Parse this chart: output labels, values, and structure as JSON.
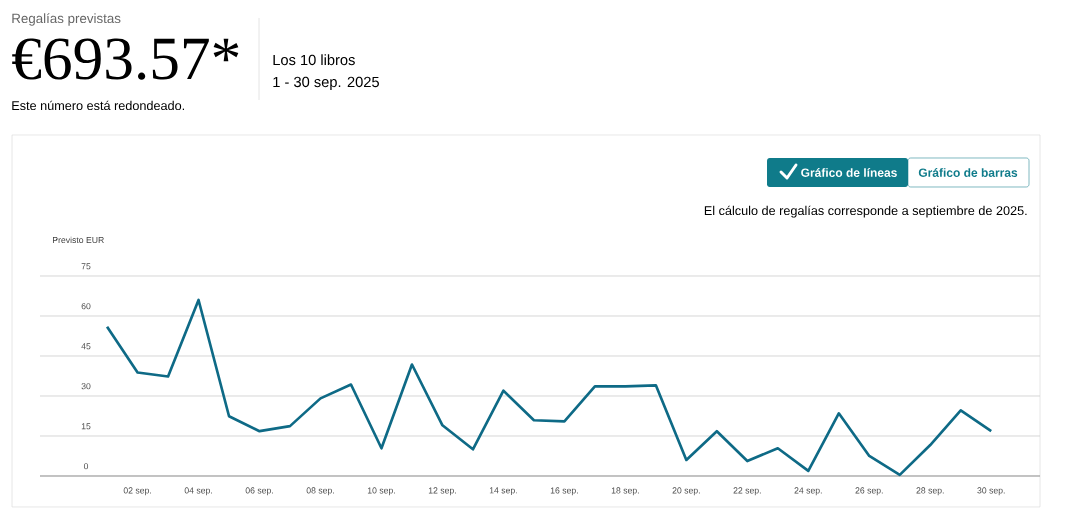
{
  "chart_data": {
    "type": "line",
    "title": "Regalías previstas",
    "ylabel": "Previsto EUR",
    "annotations": [
      "€693.57*",
      "Los 10 libros",
      "1 - 30 sep. 2025",
      "Este número está redondeado.",
      "Gráfico de líneas",
      "Gráfico de barras",
      "El cálculo de regalías corresponde a septiembre de 2025."
    ],
    "categories": [
      null,
      "02 sep.",
      null,
      "04 sep.",
      null,
      "06 sep.",
      null,
      "08 sep.",
      null,
      "10 sep.",
      null,
      "12 sep.",
      null,
      "14 sep.",
      null,
      "16 sep.",
      null,
      "18 sep.",
      null,
      "20 sep.",
      null,
      "22 sep.",
      null,
      "24 sep.",
      null,
      "26 sep.",
      null,
      "28 sep.",
      null,
      "30 sep."
    ],
    "series": [
      {
        "color": "#0e6a86",
        "values": [
          56,
          38.8,
          37.3,
          66,
          22.4,
          16.8,
          18.7,
          29.1,
          34.3,
          10.4,
          41.8,
          19,
          10,
          32,
          20.9,
          20.5,
          33.6,
          33.6,
          34,
          6,
          16.8,
          5.6,
          10.4,
          1.9,
          23.5,
          7.5,
          0.4,
          11.6,
          24.6,
          16.8
        ]
      }
    ],
    "ylim": [
      0,
      75
    ],
    "yticks": [
      0,
      15,
      30,
      45,
      60,
      75
    ],
    "grid": "y"
  }
}
